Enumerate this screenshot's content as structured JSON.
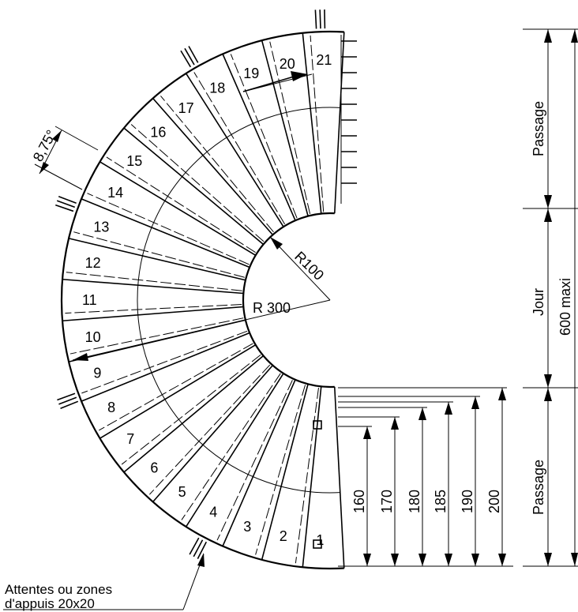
{
  "steps": [
    "1",
    "2",
    "3",
    "4",
    "5",
    "6",
    "7",
    "8",
    "9",
    "10",
    "11",
    "12",
    "13",
    "14",
    "15",
    "16",
    "17",
    "18",
    "19",
    "20",
    "21"
  ],
  "labels": {
    "angle": "8,75°",
    "radius_outer": "R 300",
    "radius_inner": "R100",
    "passage_top": "Passage",
    "jour": "Jour",
    "passage_bottom": "Passage",
    "total_height": "600 maxi",
    "note_line1": "Attentes ou zones",
    "note_line2": "d'appuis 20x20"
  },
  "step_heights": [
    "160",
    "170",
    "180",
    "185",
    "190",
    "200"
  ],
  "colors": {
    "ink": "#000000",
    "paper": "#ffffff"
  }
}
